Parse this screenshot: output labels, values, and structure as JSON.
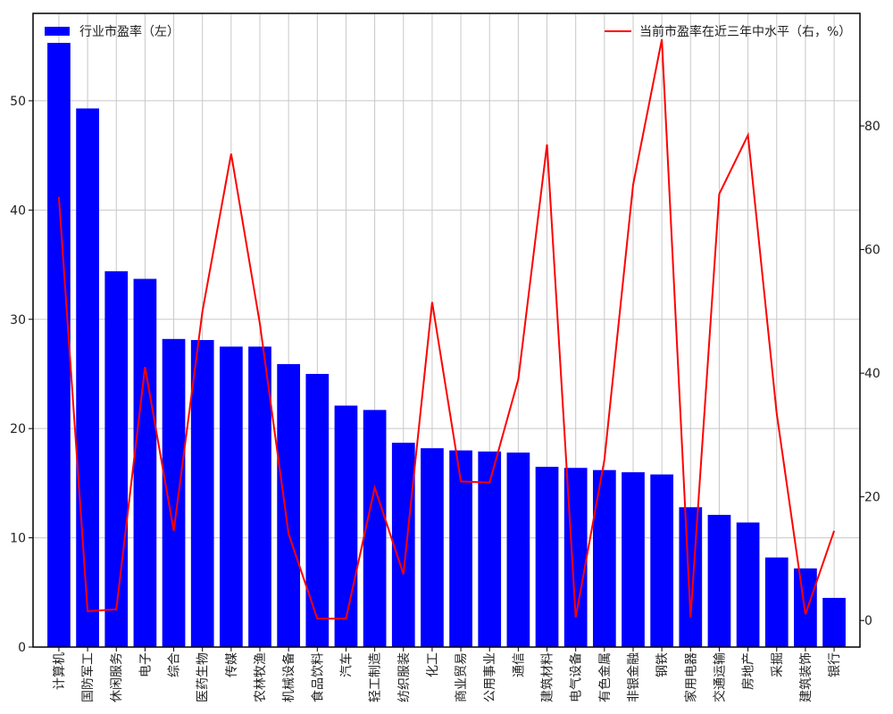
{
  "chart_data": {
    "type": "bar+line",
    "categories": [
      "计算机",
      "国防军工",
      "休闲服务",
      "电子",
      "综合",
      "医药生物",
      "传媒",
      "农林牧渔",
      "机械设备",
      "食品饮料",
      "汽车",
      "轻工制造",
      "纺织服装",
      "化工",
      "商业贸易",
      "公用事业",
      "通信",
      "建筑材料",
      "电气设备",
      "有色金属",
      "非银金融",
      "钢铁",
      "家用电器",
      "交通运输",
      "房地产",
      "采掘",
      "建筑装饰",
      "银行"
    ],
    "series": [
      {
        "name": "行业市盈率(左)",
        "type": "bar",
        "axis": "left",
        "color": "#0000ff",
        "values": [
          55.3,
          49.3,
          34.4,
          33.7,
          28.2,
          28.1,
          27.5,
          27.5,
          25.9,
          25.0,
          22.1,
          21.7,
          18.7,
          18.2,
          18.0,
          17.9,
          17.8,
          16.5,
          16.4,
          16.2,
          16.0,
          15.8,
          12.8,
          12.1,
          11.4,
          8.2,
          7.2,
          4.5
        ]
      },
      {
        "name": "当前市盈率在近三年中水平(右,%)",
        "type": "line",
        "axis": "right",
        "color": "#ff0000",
        "values": [
          68.5,
          1.5,
          1.8,
          41.0,
          14.5,
          50.0,
          75.5,
          48.0,
          14.0,
          0.3,
          0.3,
          21.5,
          7.5,
          51.5,
          22.5,
          22.3,
          39.0,
          77.0,
          0.5,
          26.0,
          70.5,
          94.0,
          0.5,
          69.0,
          78.5,
          33.5,
          1.0,
          14.5
        ]
      }
    ],
    "legend": {
      "left_label": "行业市盈率（左）",
      "right_label": "当前市盈率在近三年中水平（右，%）"
    },
    "left_axis": {
      "min": 0,
      "max": 58,
      "ticks": [
        0,
        10,
        20,
        30,
        40,
        50
      ],
      "tick_labels": [
        "0",
        "10",
        "20",
        "30",
        "40",
        "50"
      ]
    },
    "right_axis": {
      "min": -4.3,
      "max": 98.2,
      "ticks": [
        0,
        20,
        40,
        60,
        80
      ],
      "tick_labels": [
        "0",
        "20",
        "40",
        "60",
        "80"
      ]
    },
    "grid": true,
    "legend_placement": "top"
  }
}
